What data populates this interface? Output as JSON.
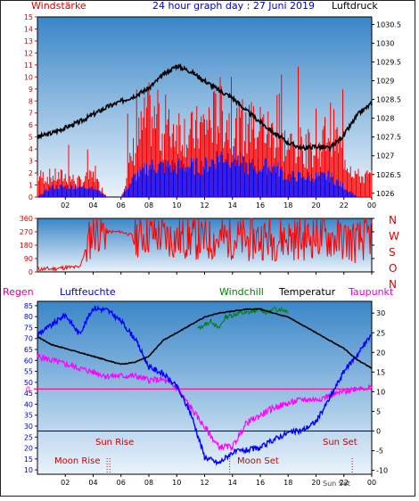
{
  "header": {
    "left_label": "Windstärke",
    "title": "24 hour graph day : 27 Juni 2019",
    "right_label": "Luftdruck"
  },
  "direction_labels": [
    "N",
    "W",
    "S",
    "O",
    "N"
  ],
  "bottom_header": {
    "rain": "Regen",
    "humidity": "Luftfeuchte",
    "windchill": "Windchill",
    "temperature": "Temperatur",
    "dewpoint": "Taupunkt"
  },
  "events": {
    "sun_rise": "Sun Rise",
    "sun_set": "Sun Set",
    "moon_rise": "Moon Rise",
    "moon_set": "Moon Set",
    "sun_set_marker": "Sun Set"
  },
  "colors": {
    "wind_axis": "#e00000",
    "pressure": "#000000",
    "gust": "#ff0000",
    "wind_avg": "#0000ff",
    "humidity": "#0000ff",
    "temperature": "#000000",
    "dewpoint": "#ff00ff",
    "windchill": "#008000",
    "rain": "#ff0080",
    "title": "#0000cc"
  },
  "chart_data": [
    {
      "type": "line",
      "name": "wind-and-pressure",
      "x_ticks": [
        "02",
        "04",
        "06",
        "08",
        "10",
        "12",
        "14",
        "16",
        "18",
        "20",
        "22",
        "00"
      ],
      "y_left_ticks": [
        0,
        1,
        2,
        3,
        4,
        5,
        6,
        7,
        8,
        9,
        10,
        11,
        12,
        13,
        14,
        15
      ],
      "y_left_range": [
        0,
        15
      ],
      "y_right_ticks": [
        "1026",
        "1026.5",
        "1027",
        "1027.5",
        "1028",
        "1028.5",
        "1029",
        "1029.5",
        "1030",
        "1030.5"
      ],
      "y_right_range": [
        1025.9,
        1030.7
      ],
      "pressure": {
        "x": [
          0,
          1,
          2,
          3,
          4,
          5,
          6,
          7,
          8,
          9,
          10,
          11,
          12,
          13,
          14,
          15,
          16,
          17,
          18,
          19,
          20,
          21,
          22,
          23,
          24
        ],
        "values": [
          1027.5,
          1027.6,
          1027.75,
          1027.9,
          1028.1,
          1028.3,
          1028.45,
          1028.6,
          1028.8,
          1029.15,
          1029.4,
          1029.25,
          1029.0,
          1028.75,
          1028.55,
          1028.2,
          1027.9,
          1027.6,
          1027.35,
          1027.2,
          1027.25,
          1027.2,
          1027.55,
          1028.1,
          1028.4
        ]
      },
      "gust": {
        "x": [
          0,
          1,
          2,
          3,
          4,
          5,
          6,
          7,
          8,
          9,
          10,
          11,
          12,
          13,
          14,
          15,
          16,
          17,
          18,
          19,
          20,
          21,
          22,
          23,
          24
        ],
        "values": [
          2,
          2,
          2,
          1.5,
          2,
          0,
          0,
          5,
          8,
          6,
          7,
          6,
          7,
          8,
          7,
          6,
          7,
          6,
          5,
          5,
          4,
          7,
          4,
          2,
          2
        ]
      },
      "wind_avg": {
        "x": [
          0,
          1,
          2,
          3,
          4,
          5,
          6,
          7,
          8,
          9,
          10,
          11,
          12,
          13,
          14,
          15,
          16,
          17,
          18,
          19,
          20,
          21,
          22,
          23,
          24
        ],
        "values": [
          0,
          1,
          1,
          1,
          1,
          0,
          0,
          2,
          3,
          3,
          3,
          3,
          3,
          4,
          4,
          3,
          3,
          3,
          2,
          2,
          2,
          2,
          1,
          0,
          0
        ]
      }
    },
    {
      "type": "line",
      "name": "wind-direction",
      "x_ticks": [
        "02",
        "04",
        "06",
        "08",
        "10",
        "12",
        "14",
        "16",
        "18",
        "20",
        "22",
        "00"
      ],
      "y_ticks": [
        0,
        90,
        180,
        270,
        360
      ],
      "y_range": [
        0,
        360
      ],
      "direction": {
        "x": [
          0,
          1,
          2,
          3,
          4,
          5,
          6,
          7,
          8,
          9,
          10,
          11,
          12,
          13,
          14,
          15,
          16,
          17,
          18,
          19,
          20,
          21,
          22,
          23,
          24
        ],
        "values": [
          20,
          20,
          30,
          30,
          280,
          270,
          270,
          240,
          260,
          240,
          220,
          230,
          210,
          220,
          230,
          210,
          230,
          220,
          230,
          220,
          240,
          230,
          220,
          200,
          250
        ]
      }
    },
    {
      "type": "line",
      "name": "humidity-temperature",
      "x_ticks": [
        "02",
        "04",
        "06",
        "08",
        "10",
        "12",
        "14",
        "16",
        "18",
        "20",
        "22",
        "00"
      ],
      "y_left_ticks": [
        10,
        15,
        20,
        25,
        30,
        35,
        40,
        45,
        50,
        55,
        60,
        65,
        70,
        75,
        80,
        85
      ],
      "y_left_range": [
        8,
        87
      ],
      "y_right_ticks": [
        -10,
        -5,
        0,
        5,
        10,
        15,
        20,
        25,
        30
      ],
      "y_right_range": [
        -11,
        33
      ],
      "rain_label": "0",
      "humidity": {
        "x": [
          0,
          1,
          2,
          3,
          4,
          5,
          6,
          7,
          8,
          9,
          10,
          11,
          12,
          13,
          14,
          15,
          16,
          17,
          18,
          19,
          20,
          21,
          22,
          23,
          24
        ],
        "values": [
          72,
          76,
          81,
          72,
          84,
          83,
          78,
          70,
          57,
          54,
          48,
          36,
          16,
          13,
          18,
          19,
          20,
          24,
          27,
          28,
          32,
          43,
          55,
          63,
          72
        ]
      },
      "temperature": {
        "x": [
          0,
          1,
          2,
          3,
          4,
          5,
          6,
          7,
          8,
          9,
          10,
          11,
          12,
          13,
          14,
          15,
          16,
          17,
          18,
          19,
          20,
          21,
          22,
          23,
          24
        ],
        "values": [
          24,
          22,
          21,
          20,
          19,
          18,
          17,
          17.5,
          19,
          23,
          25,
          27,
          29,
          30,
          30.5,
          31,
          31,
          30,
          29,
          27,
          25,
          23,
          21,
          18,
          16
        ]
      },
      "dewpoint": {
        "x": [
          0,
          1,
          2,
          3,
          4,
          5,
          6,
          7,
          8,
          9,
          10,
          11,
          12,
          13,
          14,
          15,
          16,
          17,
          18,
          19,
          20,
          21,
          22,
          23,
          24
        ],
        "values": [
          19,
          18,
          17,
          16,
          15,
          14,
          14,
          14,
          13,
          13,
          11,
          6,
          1,
          -4,
          -4,
          2,
          4,
          6,
          7,
          8,
          8,
          9,
          10,
          11,
          11
        ]
      },
      "windchill": {
        "x": [
          11.5,
          12,
          12.5,
          13,
          13.5,
          14,
          14.5,
          15,
          15.5,
          16,
          16.5,
          17,
          17.5,
          18
        ],
        "values": [
          26,
          27,
          28,
          26,
          29,
          29.5,
          30,
          30,
          30.5,
          31,
          30,
          31,
          31,
          30.5
        ]
      },
      "rain": {
        "x": [
          0,
          24
        ],
        "values": [
          0,
          0
        ]
      },
      "reference_value": 0
    }
  ]
}
